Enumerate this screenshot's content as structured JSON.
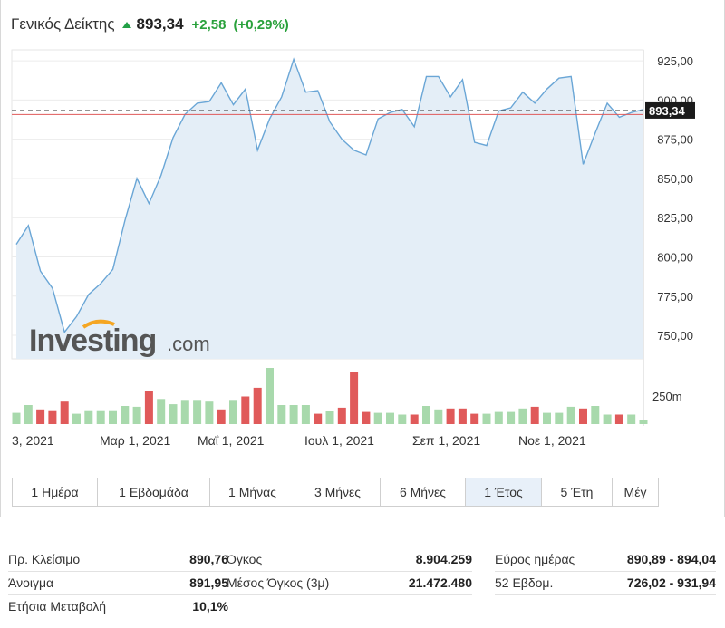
{
  "header": {
    "index_name": "Γενικός Δείκτης",
    "price": "893,34",
    "change": "+2,58",
    "change_pct": "(+0,29%)",
    "up_color": "#2aa13c"
  },
  "chart_data": {
    "type": "area",
    "y_ticks": [
      "925,00",
      "900,00",
      "875,00",
      "850,00",
      "825,00",
      "800,00",
      "775,00",
      "750,00"
    ],
    "y_tick_values": [
      925,
      900,
      875,
      850,
      825,
      800,
      775,
      750
    ],
    "ylim": [
      735,
      932
    ],
    "last_value_label": "893,34",
    "last_value": 893.34,
    "prev_close": 890.76,
    "volume_tick": "250m",
    "x_tick_labels": [
      "3, 2021",
      "Μαρ 1, 2021",
      "Μαΐ 1, 2021",
      "Ιουλ 1, 2021",
      "Σεπ 1, 2021",
      "Νοε 1, 2021"
    ],
    "values": [
      808,
      820,
      791,
      780,
      752,
      762,
      776,
      783,
      792,
      823,
      850,
      834,
      852,
      876,
      891,
      898,
      899,
      911,
      897,
      907,
      868,
      888,
      902,
      926,
      905,
      906,
      886,
      875,
      868,
      865,
      888,
      892,
      894,
      883,
      915,
      915,
      902,
      913,
      873,
      871,
      893,
      895,
      905,
      898,
      907,
      914,
      915,
      859,
      879,
      898,
      889,
      892,
      894
    ],
    "volumes": [
      0.13,
      0.22,
      0.17,
      0.16,
      0.26,
      0.12,
      0.16,
      0.16,
      0.16,
      0.21,
      0.2,
      0.38,
      0.29,
      0.23,
      0.28,
      0.28,
      0.26,
      0.17,
      0.28,
      0.32,
      0.42,
      0.65,
      0.22,
      0.22,
      0.22,
      0.12,
      0.15,
      0.19,
      0.6,
      0.14,
      0.13,
      0.13,
      0.11,
      0.11,
      0.21,
      0.17,
      0.18,
      0.18,
      0.12,
      0.12,
      0.14,
      0.14,
      0.18,
      0.2,
      0.13,
      0.13,
      0.2,
      0.18,
      0.21,
      0.11,
      0.11,
      0.11,
      0.05
    ],
    "volume_up": [
      true,
      true,
      false,
      false,
      false,
      true,
      true,
      true,
      true,
      true,
      true,
      false,
      true,
      true,
      true,
      true,
      true,
      false,
      true,
      false,
      false,
      true,
      true,
      true,
      true,
      false,
      true,
      false,
      false,
      false,
      true,
      true,
      true,
      false,
      true,
      true,
      false,
      false,
      false,
      true,
      true,
      true,
      true,
      false,
      true,
      true,
      true,
      false,
      true,
      true,
      false,
      true,
      true
    ],
    "colors": {
      "line": "#6aa6d6",
      "area": "#e4eef7",
      "vol_up": "#a8d9ac",
      "vol_down": "#e05a5a",
      "prev_close_line": "#e05a5a",
      "last_line": "#555555"
    }
  },
  "tabs": [
    "1 Ημέρα",
    "1 Εβδομάδα",
    "1 Μήνας",
    "3 Μήνες",
    "6 Μήνες",
    "1 Έτος",
    "5 Έτη",
    "Μέγ"
  ],
  "active_tab": "1 Έτος",
  "stats": {
    "col1": [
      {
        "label": "Πρ. Κλείσιμο",
        "value": "890,76"
      },
      {
        "label": "Άνοιγμα",
        "value": "891,95"
      },
      {
        "label": "Ετήσια Μεταβολή",
        "value": "10,1%"
      }
    ],
    "col2": [
      {
        "label": "Όγκος",
        "value": "8.904.259"
      },
      {
        "label": "Μέσος Όγκος (3μ)",
        "value": "21.472.480"
      }
    ],
    "col3": [
      {
        "label": "Εύρος ημέρας",
        "value": "890,89 - 894,04"
      },
      {
        "label": "52 Εβδομ.",
        "value": "726,02 - 931,94"
      }
    ]
  },
  "logo": {
    "word": "Investing",
    "suffix": ".com"
  }
}
